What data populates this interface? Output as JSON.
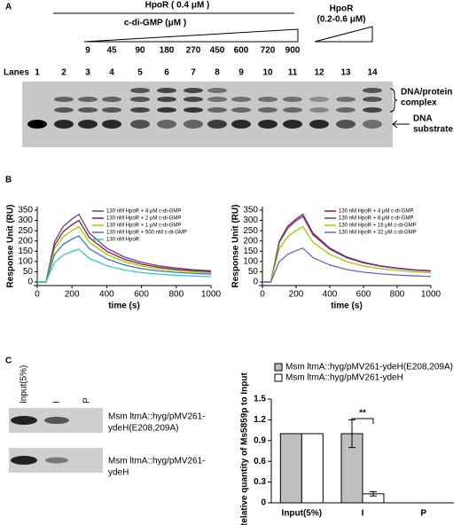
{
  "panels": {
    "a": {
      "label": "A",
      "hpor_label": "HpoR ( 0.4 μM )",
      "cdigmp_label": "c-di-GMP (μM )",
      "concentrations": [
        "9",
        "45",
        "90",
        "180",
        "270",
        "450",
        "600",
        "720",
        "900"
      ],
      "hpor_range_label": [
        "HpoR",
        "(0.2-0.6 μM)"
      ],
      "lanes_label": "Lanes",
      "lanes": [
        "1",
        "2",
        "3",
        "4",
        "5",
        "6",
        "7",
        "8",
        "9",
        "10",
        "11",
        "12",
        "13",
        "14"
      ],
      "complex_label": [
        "DNA/protein",
        "complex"
      ],
      "substrate_label": [
        "DNA",
        "substrate"
      ]
    },
    "b": {
      "label": "B"
    },
    "c": {
      "label": "C",
      "gel_columns": [
        "Input(5%)",
        "I",
        "P"
      ],
      "gel_rows": [
        [
          "Msm ltmA::hyg/pMV261-",
          "ydeH(E208,209A)"
        ],
        [
          "Msm ltmA::hyg/pMV261-",
          "ydeH"
        ]
      ]
    }
  },
  "chart_data": [
    {
      "type": "line",
      "x_label": "time (s)",
      "y_label": "Response Unit (RU)",
      "x": [
        0,
        50,
        100,
        150,
        200,
        240,
        300,
        400,
        500,
        600,
        700,
        800,
        900,
        1000
      ],
      "xlim": [
        0,
        1000
      ],
      "xticks": [
        0,
        200,
        400,
        600,
        800,
        1000
      ],
      "ylim": [
        0,
        350
      ],
      "yticks": [
        0,
        50,
        100,
        150,
        200,
        250,
        300,
        350
      ],
      "series": [
        {
          "name": "130 nM HpoR + 4 μM c-di-GMP",
          "color": "#6a3d9a",
          "values": [
            0,
            0,
            198,
            271,
            307,
            330,
            238,
            165,
            122,
            96,
            79,
            68,
            60,
            55
          ]
        },
        {
          "name": "130 nM HpoR + 2 μM c-di-GMP",
          "color": "#8b1a3a",
          "values": [
            0,
            0,
            180,
            246,
            279,
            300,
            216,
            150,
            111,
            87,
            72,
            62,
            55,
            50
          ]
        },
        {
          "name": "130 nM HpoR + 1 μM c-di-GMP",
          "color": "#99cc00",
          "values": [
            0,
            0,
            162,
            221,
            251,
            270,
            194,
            135,
            100,
            78,
            65,
            56,
            50,
            45
          ]
        },
        {
          "name": "130 nM HpoR + 500 nM c-di-GMP",
          "color": "#4472c4",
          "values": [
            0,
            0,
            135,
            184,
            209,
            225,
            162,
            113,
            83,
            65,
            54,
            47,
            42,
            38
          ]
        },
        {
          "name": "130 nM HpoR",
          "color": "#33cccc",
          "values": [
            0,
            0,
            96,
            131,
            149,
            160,
            115,
            80,
            59,
            46,
            38,
            33,
            29,
            26
          ]
        }
      ]
    },
    {
      "type": "line",
      "x_label": "time (s)",
      "y_label": "Response Unit (RU)",
      "x": [
        0,
        50,
        100,
        150,
        200,
        240,
        300,
        400,
        500,
        600,
        700,
        800,
        900,
        1000
      ],
      "xlim": [
        0,
        1000
      ],
      "xticks": [
        0,
        200,
        400,
        600,
        800,
        1000
      ],
      "ylim": [
        0,
        350
      ],
      "yticks": [
        0,
        50,
        100,
        150,
        200,
        250,
        300,
        350
      ],
      "series": [
        {
          "name": "130 nM HpoR + 4 μM c-di-GMP",
          "color": "#8b1a3a",
          "values": [
            0,
            0,
            198,
            271,
            307,
            330,
            238,
            165,
            122,
            96,
            79,
            68,
            60,
            55
          ]
        },
        {
          "name": "130 nM HpoR + 8 μM c-di-GMP",
          "color": "#6a3d9a",
          "values": [
            0,
            0,
            192,
            262,
            298,
            320,
            230,
            160,
            118,
            93,
            77,
            66,
            58,
            53
          ]
        },
        {
          "name": "130 nM HpoR + 16 μM c-di-GMP",
          "color": "#99cc00",
          "values": [
            0,
            0,
            162,
            221,
            251,
            270,
            194,
            135,
            100,
            78,
            65,
            56,
            50,
            45
          ]
        },
        {
          "name": "130 nM HpoR + 32 μM c-di-GMP",
          "color": "#6666cc",
          "values": [
            0,
            0,
            99,
            135,
            153,
            165,
            119,
            83,
            61,
            48,
            40,
            34,
            30,
            27
          ]
        }
      ]
    },
    {
      "type": "bar",
      "y_label": "Relative quantity of Ms5859p to Input",
      "categories": [
        "Input(5%)",
        "I",
        "P"
      ],
      "ylim": [
        0,
        1.5
      ],
      "yticks": [
        0,
        0.3,
        0.6,
        0.9,
        1.2,
        1.5
      ],
      "annotation": "**",
      "series": [
        {
          "name": "Msm ltmA::hyg/pMV261-ydeH(E208,209A)",
          "color": "#bfbfbf",
          "values": [
            1,
            1.0,
            0
          ],
          "errors": [
            0,
            0.2,
            0
          ]
        },
        {
          "name": "Msm ltmA::hyg/pMV261-ydeH",
          "color": "#ffffff",
          "values": [
            1,
            0.13,
            0
          ],
          "errors": [
            0,
            0.03,
            0
          ]
        }
      ]
    }
  ]
}
